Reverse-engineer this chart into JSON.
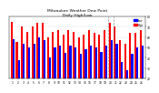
{
  "title": "Milwaukee Weather Dew Point",
  "subtitle": "Daily High/Low",
  "highs": [
    75,
    55,
    70,
    65,
    70,
    74,
    74,
    60,
    65,
    67,
    62,
    67,
    65,
    60,
    62,
    67,
    64,
    62,
    67,
    74,
    70,
    57,
    54,
    64,
    64,
    67
  ],
  "lows": [
    58,
    38,
    54,
    50,
    54,
    60,
    57,
    40,
    50,
    52,
    45,
    52,
    50,
    44,
    48,
    52,
    50,
    46,
    52,
    57,
    54,
    36,
    28,
    44,
    50,
    52
  ],
  "days": [
    "1",
    "2",
    "3",
    "4",
    "5",
    "6",
    "7",
    "8",
    "9",
    "10",
    "11",
    "12",
    "13",
    "14",
    "15",
    "16",
    "17",
    "18",
    "19",
    "20",
    "21",
    "22",
    "23",
    "24",
    "25",
    "26"
  ],
  "high_color": "#ff0000",
  "low_color": "#0000ff",
  "bg_color": "#ffffff",
  "ylim": [
    20,
    80
  ],
  "yticks": [
    20,
    30,
    40,
    50,
    60,
    70,
    80
  ],
  "dashed_vlines": [
    18.5,
    19.5
  ],
  "legend_high_label": "High",
  "legend_low_label": "Low"
}
